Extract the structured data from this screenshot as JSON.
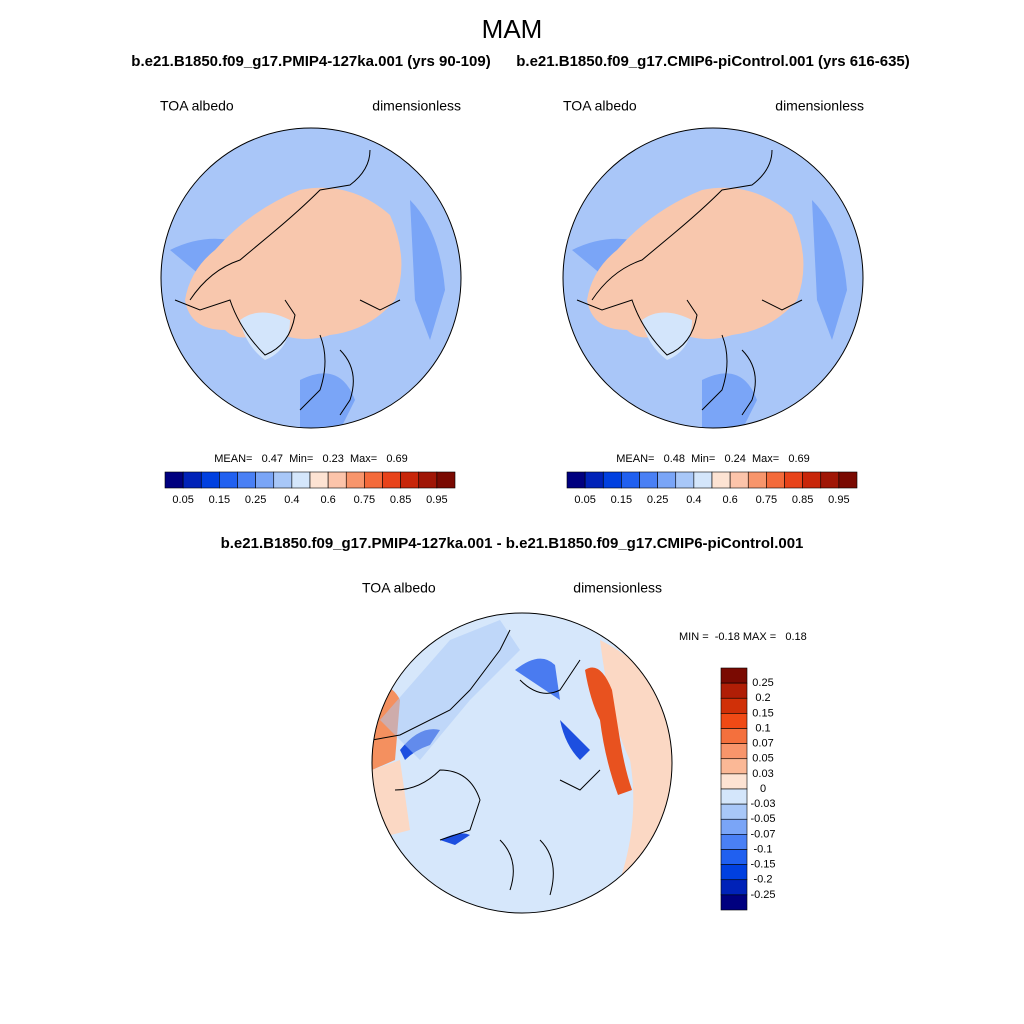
{
  "title": "MAM",
  "panels": [
    {
      "case": "b.e21.B1850.f09_g17.PMIP4-127ka.001 (yrs 90-109)",
      "variable": "TOA albedo",
      "units": "dimensionless",
      "stats": "MEAN=   0.47  Min=   0.23  Max=   0.69",
      "colorbar_labels": [
        "0.05",
        "0.15",
        "0.25",
        "0.4",
        "0.6",
        "0.75",
        "0.85",
        "0.95"
      ]
    },
    {
      "case": "b.e21.B1850.f09_g17.CMIP6-piControl.001 (yrs 616-635)",
      "variable": "TOA albedo",
      "units": "dimensionless",
      "stats": "MEAN=   0.48  Min=   0.24  Max=   0.69",
      "colorbar_labels": [
        "0.05",
        "0.15",
        "0.25",
        "0.4",
        "0.6",
        "0.75",
        "0.85",
        "0.95"
      ]
    }
  ],
  "difference": {
    "case": "b.e21.B1850.f09_g17.PMIP4-127ka.001 - b.e21.B1850.f09_g17.CMIP6-piControl.001",
    "variable": "TOA albedo",
    "units": "dimensionless",
    "stats": "MIN =  -0.18 MAX =   0.18",
    "colorbar_labels": [
      "0.25",
      "0.2",
      "0.15",
      "0.1",
      "0.07",
      "0.05",
      "0.03",
      "0",
      "-0.03",
      "-0.05",
      "-0.07",
      "-0.1",
      "-0.15",
      "-0.2",
      "-0.25"
    ]
  }
}
